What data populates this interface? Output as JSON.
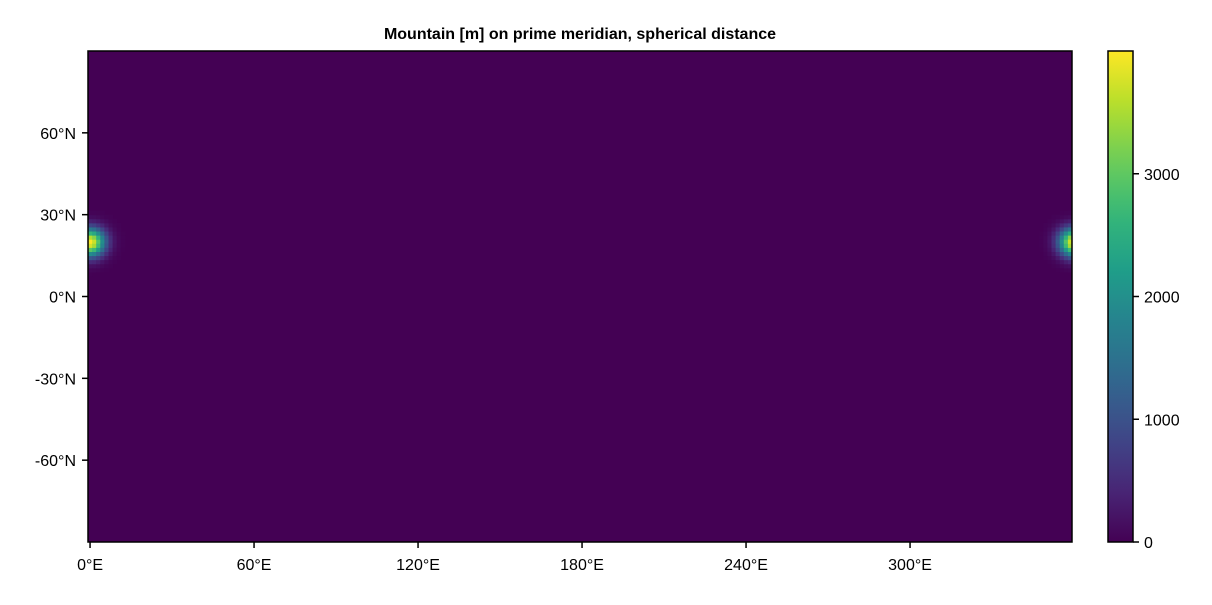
{
  "chart_data": {
    "type": "heatmap",
    "title": "Mountain [m] on prime meridian, spherical distance",
    "xlabel": "",
    "ylabel": "",
    "x_ticks": [
      {
        "value": 0,
        "label": "0°E"
      },
      {
        "value": 60,
        "label": "60°E"
      },
      {
        "value": 120,
        "label": "120°E"
      },
      {
        "value": 180,
        "label": "180°E"
      },
      {
        "value": 240,
        "label": "240°E"
      },
      {
        "value": 300,
        "label": "300°E"
      }
    ],
    "y_ticks": [
      {
        "value": 60,
        "label": "60°N"
      },
      {
        "value": 30,
        "label": "30°N"
      },
      {
        "value": 0,
        "label": "0°N"
      },
      {
        "value": -30,
        "label": "-30°N"
      },
      {
        "value": -60,
        "label": "-60°N"
      }
    ],
    "xlim": [
      -0.75,
      359.25
    ],
    "ylim": [
      -90,
      90
    ],
    "grid_spacing_deg": 1.5,
    "grid": false,
    "colormap": "viridis",
    "colorrange": [
      0,
      4000
    ],
    "colorbar": {
      "placement": "right",
      "ticks": [
        {
          "value": 0,
          "label": "0"
        },
        {
          "value": 1000,
          "label": "1000"
        },
        {
          "value": 2000,
          "label": "2000"
        },
        {
          "value": 3000,
          "label": "3000"
        }
      ]
    },
    "field": {
      "peak_value": 4000,
      "center_lon": 0,
      "center_lat": 20,
      "width_deg": 5,
      "background_value": 0
    }
  }
}
